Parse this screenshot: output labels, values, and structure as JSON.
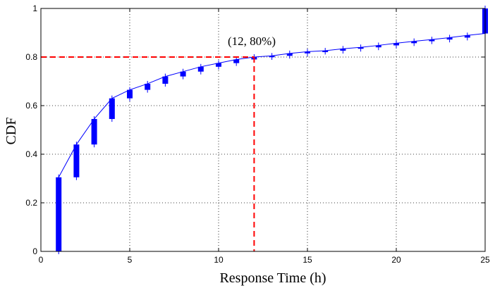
{
  "chart_data": {
    "type": "line",
    "xlabel": "Response Time (h)",
    "ylabel": "CDF",
    "xlim": [
      0,
      25
    ],
    "ylim": [
      0,
      1
    ],
    "xticks": [
      0,
      5,
      10,
      15,
      20,
      25
    ],
    "yticks": [
      0,
      0.2,
      0.4,
      0.6,
      0.8,
      1
    ],
    "xtick_labels": [
      "0",
      "5",
      "10",
      "15",
      "20",
      "25"
    ],
    "ytick_labels": [
      "0",
      "0.2",
      "0.4",
      "0.6",
      "0.8",
      "1"
    ],
    "grid": true,
    "line_color": "#0000ff",
    "reference_color": "#ff0000",
    "series": [
      {
        "x": [
          1,
          2,
          3,
          4,
          5,
          6,
          7,
          8,
          9,
          10,
          11,
          12,
          13,
          14,
          15,
          16,
          17,
          18,
          19,
          20,
          21,
          22,
          23,
          24,
          25
        ],
        "values": [
          0.305,
          0.44,
          0.545,
          0.63,
          0.665,
          0.69,
          0.72,
          0.74,
          0.76,
          0.775,
          0.79,
          0.8,
          0.805,
          0.815,
          0.822,
          0.826,
          0.834,
          0.84,
          0.848,
          0.857,
          0.865,
          0.872,
          0.88,
          0.889,
          0.897
        ],
        "lower": [
          0,
          0.305,
          0.44,
          0.545,
          0.63,
          0.665,
          0.69,
          0.72,
          0.74,
          0.76,
          0.775,
          0.79,
          0.8,
          0.805,
          0.815,
          0.822,
          0.826,
          0.834,
          0.84,
          0.848,
          0.857,
          0.865,
          0.872,
          0.88,
          0.897
        ],
        "upper": [
          0.305,
          0.44,
          0.545,
          0.63,
          0.665,
          0.69,
          0.72,
          0.74,
          0.76,
          0.775,
          0.79,
          0.8,
          0.805,
          0.815,
          0.822,
          0.826,
          0.834,
          0.84,
          0.848,
          0.857,
          0.865,
          0.872,
          0.88,
          0.889,
          1.0
        ]
      }
    ],
    "reference_point": {
      "x": 12,
      "y": 0.8
    },
    "annotation": {
      "text": "(12, 80%)",
      "x": 12,
      "y": 0.8
    }
  }
}
